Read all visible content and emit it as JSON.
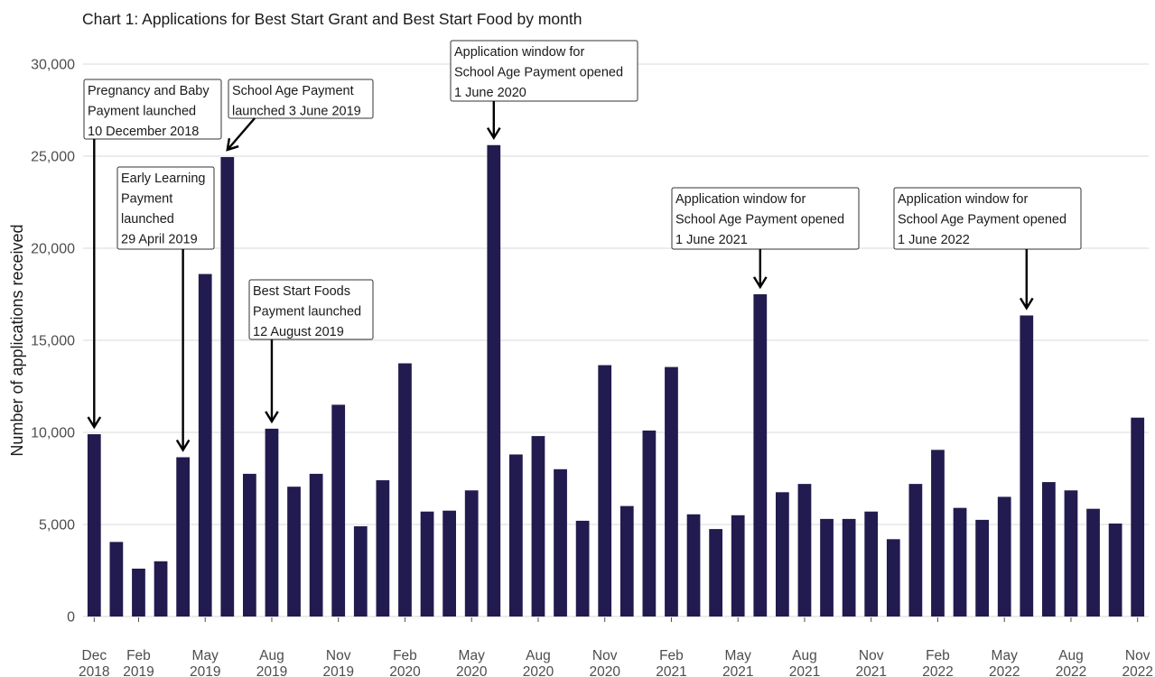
{
  "chart_data": {
    "type": "bar",
    "title": "Chart 1: Applications for Best Start Grant and Best Start Food by month",
    "ylabel": "Number of applications received",
    "xlabel": "",
    "ylim": [
      0,
      30000
    ],
    "yticks": [
      0,
      5000,
      10000,
      15000,
      20000,
      25000,
      30000
    ],
    "ytick_labels": [
      "0",
      "5,000",
      "10,000",
      "15,000",
      "20,000",
      "25,000",
      "30,000"
    ],
    "grid": true,
    "bar_color": "#221b4f",
    "categories": [
      "Dec 2018",
      "Jan 2019",
      "Feb 2019",
      "Mar 2019",
      "Apr 2019",
      "May 2019",
      "Jun 2019",
      "Jul 2019",
      "Aug 2019",
      "Sep 2019",
      "Oct 2019",
      "Nov 2019",
      "Dec 2019",
      "Jan 2020",
      "Feb 2020",
      "Mar 2020",
      "Apr 2020",
      "May 2020",
      "Jun 2020",
      "Jul 2020",
      "Aug 2020",
      "Sep 2020",
      "Oct 2020",
      "Nov 2020",
      "Dec 2020",
      "Jan 2021",
      "Feb 2021",
      "Mar 2021",
      "Apr 2021",
      "May 2021",
      "Jun 2021",
      "Jul 2021",
      "Aug 2021",
      "Sep 2021",
      "Oct 2021",
      "Nov 2021",
      "Dec 2021",
      "Jan 2022",
      "Feb 2022",
      "Mar 2022",
      "Apr 2022",
      "May 2022",
      "Jun 2022",
      "Jul 2022",
      "Aug 2022",
      "Sep 2022",
      "Oct 2022",
      "Nov 2022"
    ],
    "values": [
      9900,
      4050,
      2600,
      3000,
      8650,
      18600,
      24950,
      7750,
      10200,
      7050,
      7750,
      11500,
      4900,
      7400,
      13750,
      5700,
      5750,
      6850,
      25600,
      8800,
      9800,
      8000,
      5200,
      13650,
      6000,
      10100,
      13550,
      5550,
      4750,
      5500,
      17500,
      6750,
      7200,
      5300,
      5300,
      5700,
      4200,
      7200,
      9050,
      5900,
      5250,
      6500,
      16350,
      7300,
      6850,
      5850,
      5050,
      10800
    ],
    "x_tick_labels": [
      {
        "index": 0,
        "month": "Dec",
        "year": "2018"
      },
      {
        "index": 2,
        "month": "Feb",
        "year": "2019"
      },
      {
        "index": 5,
        "month": "May",
        "year": "2019"
      },
      {
        "index": 8,
        "month": "Aug",
        "year": "2019"
      },
      {
        "index": 11,
        "month": "Nov",
        "year": "2019"
      },
      {
        "index": 14,
        "month": "Feb",
        "year": "2020"
      },
      {
        "index": 17,
        "month": "May",
        "year": "2020"
      },
      {
        "index": 20,
        "month": "Aug",
        "year": "2020"
      },
      {
        "index": 23,
        "month": "Nov",
        "year": "2020"
      },
      {
        "index": 26,
        "month": "Feb",
        "year": "2021"
      },
      {
        "index": 29,
        "month": "May",
        "year": "2021"
      },
      {
        "index": 32,
        "month": "Aug",
        "year": "2021"
      },
      {
        "index": 35,
        "month": "Nov",
        "year": "2021"
      },
      {
        "index": 38,
        "month": "Feb",
        "year": "2022"
      },
      {
        "index": 41,
        "month": "May",
        "year": "2022"
      },
      {
        "index": 44,
        "month": "Aug",
        "year": "2022"
      },
      {
        "index": 47,
        "month": "Nov",
        "year": "2022"
      }
    ],
    "annotations": [
      {
        "target_index": 0,
        "lines": [
          "Pregnancy and Baby",
          "Payment launched",
          "10 December 2018"
        ]
      },
      {
        "target_index": 4,
        "lines": [
          "Early Learning",
          "Payment",
          "launched",
          "29 April 2019"
        ]
      },
      {
        "target_index": 6,
        "lines": [
          "School Age Payment",
          "launched 3 June 2019"
        ]
      },
      {
        "target_index": 8,
        "lines": [
          "Best Start Foods",
          "Payment launched",
          "12 August 2019"
        ]
      },
      {
        "target_index": 18,
        "lines": [
          "Application window for",
          "School Age Payment opened",
          "1 June 2020"
        ]
      },
      {
        "target_index": 30,
        "lines": [
          "Application window for",
          "School Age Payment opened",
          "1 June 2021"
        ]
      },
      {
        "target_index": 42,
        "lines": [
          "Application window for",
          "School Age Payment opened",
          "1 June 2022"
        ]
      }
    ]
  }
}
